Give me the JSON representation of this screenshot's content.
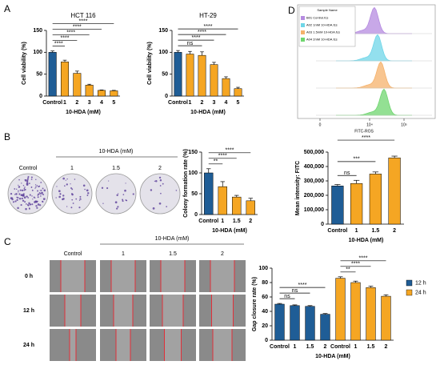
{
  "panel_labels": [
    "A",
    "B",
    "C",
    "D"
  ],
  "chart_data": [
    {
      "type": "bar",
      "title": "HCT 116",
      "categories": [
        "Control",
        "1",
        "2",
        "3",
        "4",
        "5"
      ],
      "values": [
        100,
        78,
        52,
        25,
        13,
        12
      ],
      "errors": [
        3,
        4,
        5,
        2,
        1,
        1
      ],
      "colors": [
        "#1f5d96",
        "#f5a623",
        "#f5a623",
        "#f5a623",
        "#f5a623",
        "#f5a623"
      ],
      "ylim": [
        0,
        150
      ],
      "yticks": [
        0,
        50,
        100,
        150
      ],
      "x_label": "10-HDA (mM)",
      "y_label": "Cell viability (%)",
      "comparisons": [
        {
          "label": "****",
          "pair": [
            0,
            1
          ]
        },
        {
          "label": "****",
          "pair": [
            0,
            2
          ]
        },
        {
          "label": "****",
          "pair": [
            0,
            3
          ]
        },
        {
          "label": "****",
          "pair": [
            0,
            4
          ]
        },
        {
          "label": "****",
          "pair": [
            0,
            5
          ]
        }
      ]
    },
    {
      "type": "bar",
      "title": "HT-29",
      "categories": [
        "Control",
        "1",
        "2",
        "3",
        "4",
        "5"
      ],
      "values": [
        100,
        96,
        93,
        72,
        40,
        17
      ],
      "errors": [
        4,
        6,
        8,
        5,
        4,
        3
      ],
      "colors": [
        "#1f5d96",
        "#f5a623",
        "#f5a623",
        "#f5a623",
        "#f5a623",
        "#f5a623"
      ],
      "ylim": [
        0,
        150
      ],
      "yticks": [
        0,
        50,
        100,
        150
      ],
      "x_label": "10-HDA (mM)",
      "y_label": "Cell viability (%)",
      "comparisons": [
        {
          "label": "ns",
          "pair": [
            0,
            2
          ]
        },
        {
          "label": "****",
          "pair": [
            0,
            3
          ]
        },
        {
          "label": "****",
          "pair": [
            0,
            4
          ]
        },
        {
          "label": "****",
          "pair": [
            0,
            5
          ]
        }
      ]
    },
    {
      "type": "bar",
      "categories": [
        "Control",
        "1",
        "1.5",
        "2"
      ],
      "values": [
        100,
        67,
        42,
        33
      ],
      "errors": [
        10,
        12,
        4,
        6
      ],
      "colors": [
        "#1f5d96",
        "#f5a623",
        "#f5a623",
        "#f5a623"
      ],
      "ylim": [
        0,
        150
      ],
      "yticks": [
        0,
        50,
        100,
        150
      ],
      "x_label": "10-HDA (mM)",
      "y_label": "Colony formation rate (%)",
      "comparisons": [
        {
          "label": "**",
          "pair": [
            0,
            1
          ]
        },
        {
          "label": "****",
          "pair": [
            0,
            2
          ]
        },
        {
          "label": "****",
          "pair": [
            0,
            3
          ]
        }
      ]
    },
    {
      "type": "grouped-bar",
      "categories": [
        "Control",
        "1",
        "1.5",
        "2",
        "Control",
        "1",
        "1.5",
        "2"
      ],
      "series": [
        {
          "name": "12 h",
          "color": "#1f5d96",
          "values": [
            50,
            48,
            47,
            36,
            null,
            null,
            null,
            null
          ],
          "errors": [
            1,
            1,
            1,
            1,
            null,
            null,
            null,
            null
          ]
        },
        {
          "name": "24 h",
          "color": "#f5a623",
          "values": [
            null,
            null,
            null,
            null,
            86,
            80,
            73,
            61
          ],
          "errors": [
            null,
            null,
            null,
            null,
            2,
            2,
            2,
            2
          ]
        }
      ],
      "ylim": [
        0,
        100
      ],
      "yticks": [
        0,
        20,
        40,
        60,
        80,
        100
      ],
      "x_label": "10-HDA (mM)",
      "y_label": "Gap closure rate (%)",
      "comparisons": [
        {
          "label": "ns",
          "pair": [
            0,
            1
          ]
        },
        {
          "label": "ns",
          "pair": [
            0,
            2
          ]
        },
        {
          "label": "****",
          "pair": [
            0,
            3
          ]
        },
        {
          "label": "**",
          "pair": [
            4,
            5
          ]
        },
        {
          "label": "****",
          "pair": [
            4,
            6
          ]
        },
        {
          "label": "****",
          "pair": [
            4,
            7
          ]
        }
      ]
    },
    {
      "type": "bar",
      "categories": [
        "Control",
        "1",
        "1.5",
        "2"
      ],
      "values": [
        265000,
        282000,
        348000,
        460000
      ],
      "errors": [
        10000,
        22000,
        14000,
        12000
      ],
      "colors": [
        "#1f5d96",
        "#f5a623",
        "#f5a623",
        "#f5a623"
      ],
      "ylim": [
        0,
        500000
      ],
      "yticks": [
        0,
        {
          "value": 100000,
          "label": "100,000"
        },
        {
          "value": 200000,
          "label": "200,000"
        },
        {
          "value": 300000,
          "label": "300,000"
        },
        {
          "value": 400000,
          "label": "400,000"
        },
        {
          "value": 500000,
          "label": "500,000"
        }
      ],
      "x_label": "10-HDA (mM)",
      "y_label": "Mean intensity: FITC",
      "comparisons": [
        {
          "label": "ns",
          "pair": [
            0,
            1
          ]
        },
        {
          "label": "***",
          "pair": [
            0,
            2
          ]
        },
        {
          "label": "****",
          "pair": [
            0,
            3
          ]
        }
      ]
    }
  ],
  "flow": {
    "legend_title": "Sample Name",
    "samples": [
      {
        "name": "B01 Control.fcs",
        "color": "#b58be0"
      },
      {
        "name": "A02 1mM 10-HDA.fcs",
        "color": "#6fd6e8"
      },
      {
        "name": "A03 1.5mM 10-HDA.fcs",
        "color": "#f5b26b"
      },
      {
        "name": "A04 2mM 10-HDA.fcs",
        "color": "#6fd66f"
      }
    ],
    "x_label": "FITC-ROS",
    "x_ticks": [
      "0",
      "10⁴",
      "10⁵"
    ]
  },
  "colony": {
    "header": "10-HDA (mM)",
    "labels": [
      "Control",
      "1",
      "1.5",
      "2"
    ]
  },
  "wound": {
    "header": "10-HDA (mM)",
    "columns": [
      "Control",
      "1",
      "1.5",
      "2"
    ],
    "rows": [
      "0 h",
      "12 h",
      "24 h"
    ]
  }
}
